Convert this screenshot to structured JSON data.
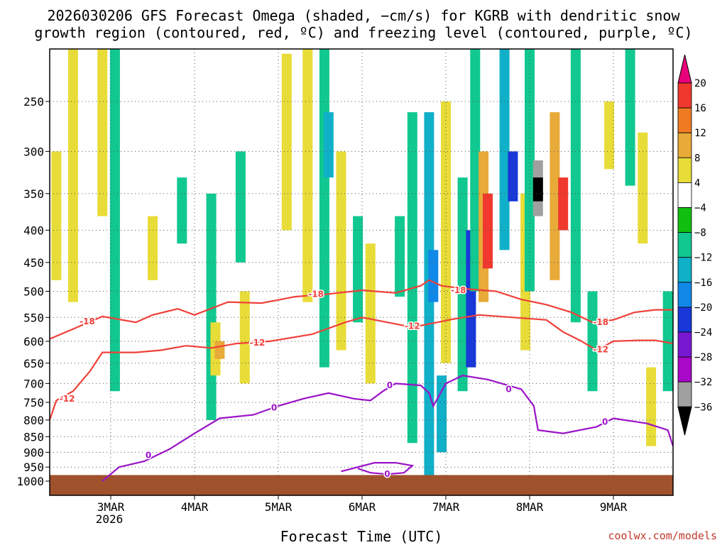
{
  "chart_data": {
    "type": "heatmap",
    "title_lines": [
      "2026030206 GFS Forecast Omega (shaded, −cm/s) for KGRB with dendritic snow",
      "growth region (contoured, red, ºC) and freezing level (contoured, purple, ºC)"
    ],
    "xlabel": "Forecast Time (UTC)",
    "ylabel": "",
    "x_ticks": [
      "3MAR",
      "4MAR",
      "5MAR",
      "6MAR",
      "7MAR",
      "8MAR",
      "9MAR"
    ],
    "x_year_label": "2026",
    "x_range_days": [
      2.25,
      9.75
    ],
    "y_ticks": [
      250,
      300,
      350,
      400,
      450,
      500,
      550,
      600,
      650,
      700,
      750,
      800,
      850,
      900,
      950,
      1000
    ],
    "y_range_hpa": [
      200,
      1020
    ],
    "colorbar": {
      "tick_labels": [
        "20",
        "16",
        "12",
        "8",
        "4",
        "−4",
        "−8",
        "−12",
        "−16",
        "−20",
        "−24",
        "−28",
        "−32",
        "−36"
      ],
      "colors": [
        "#e8007a",
        "#f0382e",
        "#f07a22",
        "#e8aa38",
        "#e8dc38",
        "#ffffff",
        "#10c010",
        "#10c890",
        "#10b0c8",
        "#1088e8",
        "#1838d8",
        "#7818d0",
        "#a808c8",
        "#a0a0a0",
        "#000000"
      ]
    },
    "shaded_cells": [
      {
        "t": 2.35,
        "p0": 300,
        "p1": 480,
        "v": 5
      },
      {
        "t": 2.55,
        "p0": 180,
        "p1": 520,
        "v": 5
      },
      {
        "t": 2.9,
        "p0": 150,
        "p1": 380,
        "v": 5
      },
      {
        "t": 3.05,
        "p0": 160,
        "p1": 720,
        "v": -8
      },
      {
        "t": 3.5,
        "p0": 380,
        "p1": 480,
        "v": 5
      },
      {
        "t": 3.85,
        "p0": 330,
        "p1": 420,
        "v": -8
      },
      {
        "t": 4.2,
        "p0": 350,
        "p1": 800,
        "v": -8
      },
      {
        "t": 4.25,
        "p0": 560,
        "p1": 680,
        "v": 5
      },
      {
        "t": 4.3,
        "p0": 600,
        "p1": 640,
        "v": 10
      },
      {
        "t": 4.55,
        "p0": 300,
        "p1": 450,
        "v": -8
      },
      {
        "t": 4.6,
        "p0": 500,
        "p1": 700,
        "v": 5
      },
      {
        "t": 5.1,
        "p0": 210,
        "p1": 400,
        "v": 5
      },
      {
        "t": 5.35,
        "p0": 200,
        "p1": 520,
        "v": 5
      },
      {
        "t": 5.55,
        "p0": 140,
        "p1": 660,
        "v": -8
      },
      {
        "t": 5.6,
        "p0": 260,
        "p1": 330,
        "v": -14
      },
      {
        "t": 5.75,
        "p0": 300,
        "p1": 620,
        "v": 5
      },
      {
        "t": 5.95,
        "p0": 380,
        "p1": 560,
        "v": -8
      },
      {
        "t": 6.1,
        "p0": 420,
        "p1": 700,
        "v": 5
      },
      {
        "t": 6.45,
        "p0": 380,
        "p1": 510,
        "v": -8
      },
      {
        "t": 6.6,
        "p0": 260,
        "p1": 870,
        "v": -8
      },
      {
        "t": 6.8,
        "p0": 260,
        "p1": 1000,
        "v": -14
      },
      {
        "t": 6.85,
        "p0": 430,
        "p1": 520,
        "v": -18
      },
      {
        "t": 6.95,
        "p0": 680,
        "p1": 900,
        "v": -14
      },
      {
        "t": 7.0,
        "p0": 250,
        "p1": 650,
        "v": 5
      },
      {
        "t": 7.2,
        "p0": 330,
        "p1": 720,
        "v": -8
      },
      {
        "t": 7.3,
        "p0": 400,
        "p1": 660,
        "v": -20
      },
      {
        "t": 7.35,
        "p0": 160,
        "p1": 500,
        "v": -10
      },
      {
        "t": 7.45,
        "p0": 300,
        "p1": 520,
        "v": 8
      },
      {
        "t": 7.5,
        "p0": 350,
        "p1": 460,
        "v": 16
      },
      {
        "t": 7.7,
        "p0": 180,
        "p1": 430,
        "v": -14
      },
      {
        "t": 7.8,
        "p0": 300,
        "p1": 360,
        "v": -20
      },
      {
        "t": 7.95,
        "p0": 350,
        "p1": 620,
        "v": 6
      },
      {
        "t": 8.0,
        "p0": 150,
        "p1": 500,
        "v": -10
      },
      {
        "t": 8.1,
        "p0": 310,
        "p1": 380,
        "v": -32
      },
      {
        "t": 8.1,
        "p0": 330,
        "p1": 360,
        "v": -36
      },
      {
        "t": 8.3,
        "p0": 260,
        "p1": 480,
        "v": 9
      },
      {
        "t": 8.4,
        "p0": 330,
        "p1": 400,
        "v": 17
      },
      {
        "t": 8.55,
        "p0": 200,
        "p1": 560,
        "v": -10
      },
      {
        "t": 8.75,
        "p0": 500,
        "p1": 720,
        "v": -8
      },
      {
        "t": 8.95,
        "p0": 250,
        "p1": 320,
        "v": 5
      },
      {
        "t": 9.2,
        "p0": 160,
        "p1": 340,
        "v": -8
      },
      {
        "t": 9.35,
        "p0": 280,
        "p1": 420,
        "v": 5
      },
      {
        "t": 9.45,
        "p0": 660,
        "p1": 880,
        "v": 5
      },
      {
        "t": 9.65,
        "p0": 500,
        "p1": 720,
        "v": -8
      }
    ],
    "contour_lines": [
      {
        "name": "dgz-minus-18",
        "color": "#f0403a",
        "points": [
          [
            2.25,
            595
          ],
          [
            2.6,
            570
          ],
          [
            2.9,
            548
          ],
          [
            3.3,
            560
          ],
          [
            3.5,
            545
          ],
          [
            3.8,
            533
          ],
          [
            4.0,
            545
          ],
          [
            4.4,
            520
          ],
          [
            4.8,
            522
          ],
          [
            5.2,
            510
          ],
          [
            5.6,
            505
          ],
          [
            6.0,
            498
          ],
          [
            6.4,
            503
          ],
          [
            6.7,
            490
          ],
          [
            6.8,
            480
          ],
          [
            6.95,
            490
          ],
          [
            7.2,
            495
          ],
          [
            7.6,
            500
          ],
          [
            7.9,
            515
          ],
          [
            8.2,
            525
          ],
          [
            8.5,
            540
          ],
          [
            8.75,
            560
          ],
          [
            9.0,
            555
          ],
          [
            9.25,
            540
          ],
          [
            9.5,
            535
          ],
          [
            9.75,
            535
          ]
        ],
        "labels": [
          {
            "t": 2.72,
            "p": 558,
            "text": "-18"
          },
          {
            "t": 5.45,
            "p": 505,
            "text": "-18"
          },
          {
            "t": 7.15,
            "p": 498,
            "text": "-18"
          },
          {
            "t": 8.85,
            "p": 560,
            "text": "-18"
          }
        ]
      },
      {
        "name": "dgz-minus-12",
        "color": "#f0403a",
        "points": [
          [
            2.25,
            800
          ],
          [
            2.35,
            745
          ],
          [
            2.55,
            720
          ],
          [
            2.75,
            670
          ],
          [
            2.9,
            625
          ],
          [
            3.3,
            625
          ],
          [
            3.6,
            620
          ],
          [
            3.9,
            610
          ],
          [
            4.2,
            615
          ],
          [
            4.5,
            605
          ],
          [
            4.9,
            600
          ],
          [
            5.4,
            585
          ],
          [
            5.8,
            560
          ],
          [
            6.0,
            550
          ],
          [
            6.3,
            560
          ],
          [
            6.6,
            570
          ],
          [
            6.9,
            560
          ],
          [
            7.1,
            553
          ],
          [
            7.4,
            545
          ],
          [
            7.8,
            550
          ],
          [
            8.2,
            555
          ],
          [
            8.4,
            580
          ],
          [
            8.6,
            598
          ],
          [
            8.8,
            620
          ],
          [
            9.0,
            600
          ],
          [
            9.3,
            598
          ],
          [
            9.5,
            598
          ],
          [
            9.75,
            605
          ]
        ],
        "labels": [
          {
            "t": 2.48,
            "p": 740,
            "text": "-12"
          },
          {
            "t": 4.75,
            "p": 603,
            "text": "-12"
          },
          {
            "t": 6.6,
            "p": 568,
            "text": "-12"
          },
          {
            "t": 8.85,
            "p": 618,
            "text": "-12"
          }
        ]
      },
      {
        "name": "freezing-level-upper",
        "color": "#9b12c8",
        "points": [
          [
            2.9,
            1000
          ],
          [
            3.1,
            950
          ],
          [
            3.4,
            930
          ],
          [
            3.7,
            890
          ],
          [
            4.0,
            840
          ],
          [
            4.3,
            795
          ],
          [
            4.7,
            785
          ],
          [
            5.0,
            760
          ],
          [
            5.3,
            740
          ],
          [
            5.6,
            725
          ],
          [
            5.9,
            740
          ],
          [
            6.1,
            745
          ],
          [
            6.25,
            720
          ],
          [
            6.4,
            700
          ],
          [
            6.7,
            705
          ],
          [
            6.8,
            725
          ],
          [
            6.85,
            760
          ],
          [
            7.0,
            700
          ],
          [
            7.2,
            680
          ],
          [
            7.5,
            690
          ],
          [
            7.9,
            715
          ],
          [
            8.05,
            760
          ],
          [
            8.1,
            830
          ],
          [
            8.4,
            840
          ],
          [
            8.8,
            820
          ],
          [
            9.0,
            795
          ],
          [
            9.4,
            810
          ],
          [
            9.65,
            830
          ],
          [
            9.75,
            880
          ]
        ],
        "labels": [
          {
            "t": 3.45,
            "p": 910,
            "text": "0"
          },
          {
            "t": 4.95,
            "p": 765,
            "text": "0"
          },
          {
            "t": 6.33,
            "p": 705,
            "text": "0"
          },
          {
            "t": 7.75,
            "p": 715,
            "text": "0"
          },
          {
            "t": 8.9,
            "p": 805,
            "text": "0"
          }
        ]
      },
      {
        "name": "freezing-level-lower",
        "color": "#9b12c8",
        "points": [
          [
            5.75,
            965
          ],
          [
            5.95,
            950
          ],
          [
            6.15,
            935
          ],
          [
            6.4,
            935
          ],
          [
            6.6,
            945
          ],
          [
            6.5,
            970
          ],
          [
            6.3,
            975
          ],
          [
            6.1,
            970
          ],
          [
            5.95,
            955
          ]
        ],
        "labels": [
          {
            "t": 6.3,
            "p": 975,
            "text": "0"
          }
        ]
      }
    ],
    "terrain_color": "#a0522d",
    "surface_pressure_hpa": 978
  },
  "footer": {
    "credit": "coolwx.com/models"
  }
}
